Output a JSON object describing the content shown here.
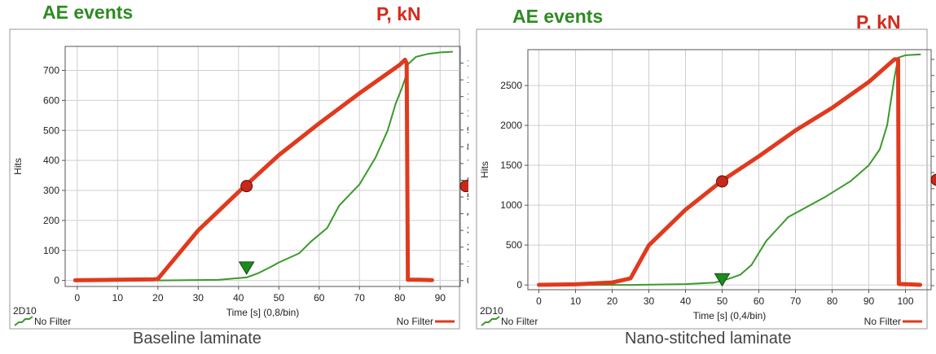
{
  "chart_data": [
    {
      "type": "line",
      "caption": "Baseline laminate",
      "left_title": "AE events",
      "right_title": "P, kN",
      "ylabel": "Hits",
      "xlabel": "Time [s] (0,8/bin)",
      "channel": "2D10",
      "legend_left": "No Filter",
      "legend_right": "No Filter",
      "xlim": [
        -3,
        95
      ],
      "ylim_left": [
        -20,
        780
      ],
      "ylim_right": [
        -0.35,
        14.0
      ],
      "x_ticks": [
        0,
        10,
        20,
        30,
        40,
        50,
        60,
        70,
        80,
        90
      ],
      "y_left_ticks": [
        0,
        100,
        200,
        300,
        400,
        500,
        600,
        700
      ],
      "y_right_ticks": [
        0,
        1,
        2,
        3,
        4,
        5,
        6,
        7,
        8,
        9,
        10,
        11,
        12,
        13
      ],
      "grid": true,
      "colors": {
        "hits": "#3a9a2a",
        "load": "#e03a1e",
        "marker_green": "#1f8a1f",
        "marker_red": "#c8281a"
      },
      "series": [
        {
          "axis": "left",
          "color": "#3a9a2a",
          "x": [
            0,
            20,
            35,
            42,
            45,
            48,
            50,
            55,
            58,
            62,
            65,
            70,
            74,
            77,
            79,
            80.5,
            81.5,
            82,
            84,
            87,
            90,
            93
          ],
          "y": [
            0,
            0,
            2,
            10,
            25,
            45,
            60,
            90,
            130,
            175,
            250,
            320,
            410,
            500,
            590,
            640,
            680,
            720,
            745,
            755,
            760,
            762
          ]
        },
        {
          "axis": "right",
          "color": "#e03a1e",
          "x": [
            -0.5,
            10,
            19,
            20,
            30,
            40,
            50,
            60,
            70,
            80,
            81.3,
            81.7,
            82,
            85,
            88
          ],
          "y": [
            0.02,
            0.05,
            0.08,
            0.1,
            3.0,
            5.3,
            7.5,
            9.4,
            11.2,
            12.9,
            13.2,
            13.0,
            0.05,
            0.05,
            0.03
          ]
        }
      ],
      "markers": [
        {
          "shape": "circle",
          "axis": "right",
          "x": 42,
          "y": 5.65,
          "color": "#c8281a"
        },
        {
          "shape": "triangle-down",
          "axis": "left",
          "x": 42,
          "y": 40,
          "color": "#1f8a1f"
        }
      ],
      "edge_marker": {
        "axis": "right",
        "y": 5.65,
        "color": "#c8281a"
      }
    },
    {
      "type": "line",
      "caption": "Nano-stitched laminate",
      "left_title": "AE events",
      "right_title": "P, kN",
      "ylabel": "Hits",
      "xlabel": "Time [s] (0,4/bin)",
      "channel": "2D10",
      "legend_left": "No Filter",
      "legend_right": "No Filter",
      "xlim": [
        -3,
        107
      ],
      "ylim_left": [
        -60,
        2950
      ],
      "ylim_right": [
        -0.25,
        14.6
      ],
      "x_ticks": [
        0,
        10,
        20,
        30,
        40,
        50,
        60,
        70,
        80,
        90,
        100
      ],
      "y_left_ticks": [
        0,
        500,
        1000,
        1500,
        2000,
        2500
      ],
      "y_right_ticks": [
        0,
        1,
        2,
        3,
        4,
        5,
        6,
        7,
        8,
        9,
        10,
        11,
        12,
        13,
        14
      ],
      "grid": true,
      "colors": {
        "hits": "#3a9a2a",
        "load": "#e03a1e",
        "marker_green": "#1f8a1f",
        "marker_red": "#c8281a"
      },
      "series": [
        {
          "axis": "left",
          "color": "#3a9a2a",
          "x": [
            0,
            25,
            40,
            48,
            52,
            55,
            58,
            60,
            62,
            65,
            68,
            72,
            78,
            85,
            90,
            93,
            95,
            96,
            97,
            98,
            100,
            104
          ],
          "y": [
            0,
            0,
            10,
            30,
            80,
            130,
            250,
            400,
            550,
            700,
            850,
            950,
            1100,
            1300,
            1500,
            1700,
            2000,
            2300,
            2600,
            2850,
            2880,
            2890
          ]
        },
        {
          "axis": "right",
          "color": "#e03a1e",
          "x": [
            0,
            10,
            20,
            24,
            25,
            30,
            40,
            50,
            60,
            70,
            80,
            90,
            97,
            98,
            98.2,
            101,
            104
          ],
          "y": [
            0.05,
            0.08,
            0.2,
            0.4,
            0.45,
            2.5,
            4.7,
            6.5,
            8.0,
            9.6,
            11.0,
            12.6,
            14.0,
            14.0,
            0.1,
            0.08,
            0.05
          ]
        }
      ],
      "markers": [
        {
          "shape": "circle",
          "axis": "right",
          "x": 50,
          "y": 6.45,
          "color": "#c8281a"
        },
        {
          "shape": "triangle-down",
          "axis": "left",
          "x": 50,
          "y": 60,
          "color": "#1f8a1f"
        }
      ],
      "edge_marker": {
        "axis": "right",
        "y": 6.55,
        "color": "#c8281a"
      }
    }
  ]
}
